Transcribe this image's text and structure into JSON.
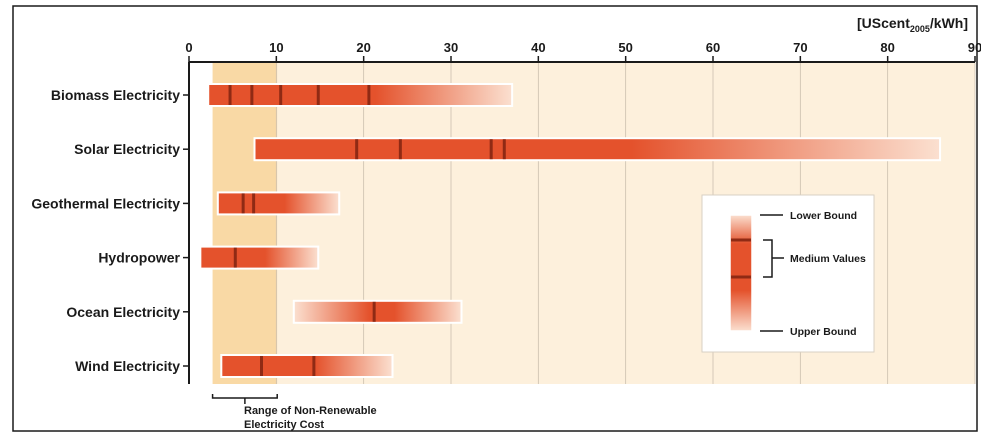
{
  "chart_data": {
    "type": "bar",
    "subtype": "range-bar",
    "unit_label": {
      "main": "[UScent",
      "sub": "2005",
      "tail": "/kWh]"
    },
    "xlim": [
      0,
      90
    ],
    "x_ticks": [
      "0",
      "10",
      "20",
      "30",
      "40",
      "50",
      "60",
      "70",
      "80",
      "90"
    ],
    "grid": true,
    "categories": [
      "Biomass Electricity",
      "Solar Electricity",
      "Geothermal Electricity",
      "Hydropower",
      "Ocean Electricity",
      "Wind Electricity"
    ],
    "series": [
      {
        "category": "Biomass Electricity",
        "lower": 2.2,
        "upper": 37,
        "medians": [
          4.7,
          7.2,
          10.5,
          14.8,
          20.6
        ]
      },
      {
        "category": "Solar Electricity",
        "lower": 7.5,
        "upper": 86,
        "medians": [
          19.2,
          24.2,
          34.6,
          36.1
        ]
      },
      {
        "category": "Geothermal Electricity",
        "lower": 3.3,
        "upper": 17.2,
        "medians": [
          6.2,
          7.4
        ]
      },
      {
        "category": "Hydropower",
        "lower": 1.3,
        "upper": 14.8,
        "medians": [
          5.3
        ]
      },
      {
        "category": "Ocean Electricity",
        "lower": 12,
        "upper": 31.2,
        "medians": [
          21.2
        ]
      },
      {
        "category": "Wind Electricity",
        "lower": 3.7,
        "upper": 23.3,
        "medians": [
          8.3,
          14.3
        ]
      }
    ],
    "reference_band": {
      "from": 2.7,
      "to": 10.1,
      "label_line1": "Range of Non-Renewable",
      "label_line2": "Electricity Cost"
    },
    "legend": {
      "position": "bottom-right",
      "lower_bound": "Lower Bound",
      "medium_values": "Medium Values",
      "upper_bound": "Upper Bound"
    },
    "colors": {
      "bar_dark": "#e4522c",
      "bar_light": "#fbe0d0",
      "median_mark": "#8f2a14",
      "shaded_region": "#fdf0dc",
      "reference_band": "#f9d9a5",
      "frame": "#1a1a1a"
    }
  }
}
